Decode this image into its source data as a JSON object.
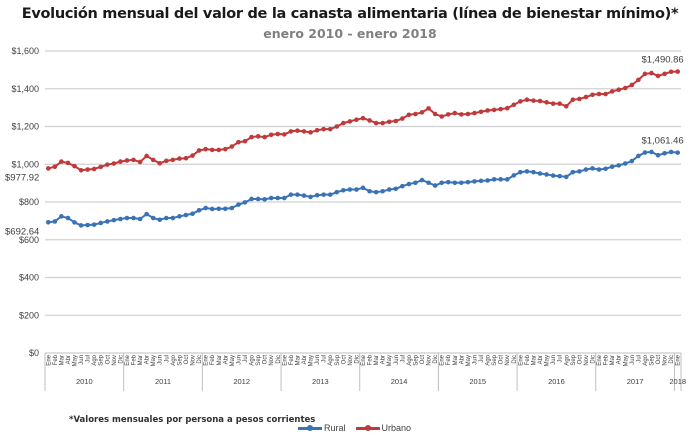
{
  "chart_data": {
    "type": "line",
    "title": "Evolución mensual del valor de la canasta alimentaria (línea de bienestar mínimo)*",
    "subtitle": "enero 2010 - enero 2018",
    "xlabel": "",
    "ylabel": "",
    "ylim": [
      0,
      1600
    ],
    "yticks": [
      0,
      200,
      400,
      600,
      800,
      1000,
      1200,
      1400,
      1600
    ],
    "ytick_labels": [
      "$0",
      "$200",
      "$400",
      "$600",
      "$800",
      "$1,000",
      "$1,200",
      "$1,400",
      "$1,600"
    ],
    "grid": true,
    "legend_position": "bottom",
    "month_labels": [
      "Ene",
      "Feb",
      "Mar",
      "Abr",
      "May",
      "Jun",
      "Jul",
      "Ago",
      "Sep",
      "Oct",
      "Nov",
      "Dic"
    ],
    "years": [
      "2010",
      "2011",
      "2012",
      "2013",
      "2014",
      "2015",
      "2016",
      "2017",
      "2018"
    ],
    "series": [
      {
        "name": "Rural",
        "color": "#3a72b8",
        "values": [
          692.64,
          697,
          724,
          715,
          692,
          676,
          678,
          680,
          689,
          697,
          704,
          710,
          715,
          715,
          710,
          736,
          715,
          706,
          715,
          715,
          724,
          731,
          738,
          756,
          768,
          763,
          764,
          764,
          768,
          786,
          798,
          816,
          816,
          814,
          821,
          821,
          821,
          839,
          839,
          834,
          827,
          836,
          839,
          839,
          852,
          862,
          866,
          866,
          875,
          857,
          852,
          857,
          866,
          870,
          884,
          895,
          902,
          916,
          902,
          887,
          902,
          905,
          902,
          902,
          905,
          909,
          912,
          914,
          920,
          920,
          920,
          941,
          958,
          962,
          958,
          951,
          946,
          940,
          937,
          933,
          958,
          962,
          972,
          978,
          972,
          976,
          987,
          994,
          1004,
          1017,
          1044,
          1062,
          1065,
          1048,
          1058,
          1065,
          1061.46
        ],
        "first_label": "$692.64",
        "last_label": "$1,061.46"
      },
      {
        "name": "Urbano",
        "color": "#c0393b",
        "values": [
          977.92,
          987,
          1014,
          1007,
          990,
          968,
          972,
          975,
          986,
          998,
          1004,
          1014,
          1020,
          1023,
          1012,
          1044,
          1023,
          1005,
          1018,
          1023,
          1030,
          1032,
          1046,
          1073,
          1080,
          1076,
          1076,
          1080,
          1094,
          1117,
          1122,
          1144,
          1148,
          1144,
          1156,
          1160,
          1158,
          1174,
          1178,
          1174,
          1169,
          1180,
          1186,
          1186,
          1200,
          1218,
          1227,
          1236,
          1244,
          1232,
          1218,
          1218,
          1225,
          1229,
          1242,
          1262,
          1266,
          1275,
          1296,
          1266,
          1253,
          1264,
          1271,
          1264,
          1266,
          1271,
          1278,
          1285,
          1288,
          1292,
          1297,
          1315,
          1333,
          1342,
          1337,
          1335,
          1328,
          1321,
          1321,
          1307,
          1342,
          1346,
          1356,
          1368,
          1372,
          1372,
          1386,
          1395,
          1404,
          1420,
          1447,
          1479,
          1483,
          1468,
          1479,
          1490,
          1490.86
        ],
        "first_label": "$977.92",
        "last_label": "$1,490.86"
      }
    ],
    "footnote": "*Valores mensuales por persona a pesos corrientes"
  },
  "legend": {
    "items": [
      {
        "label": "Rural",
        "color": "#3a72b8"
      },
      {
        "label": "Urbano",
        "color": "#c0393b"
      }
    ]
  }
}
